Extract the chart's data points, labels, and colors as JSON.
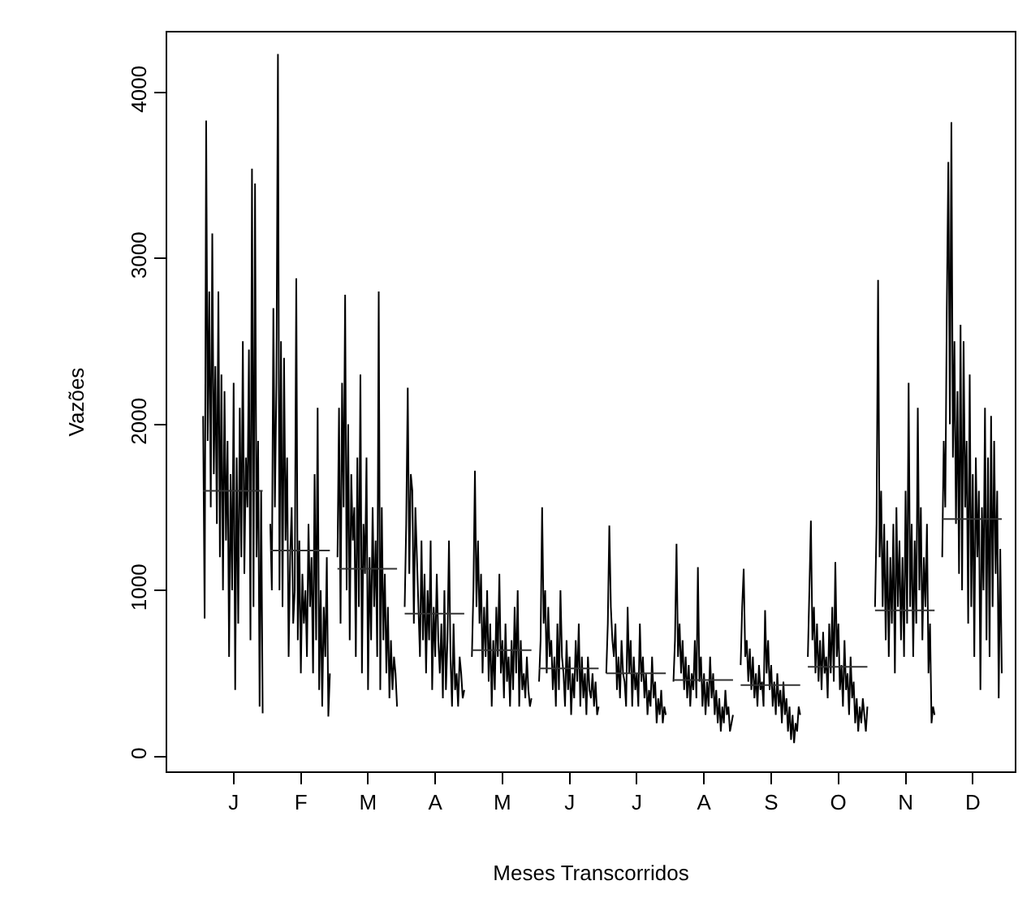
{
  "chart_data": {
    "type": "line",
    "xlabel": "Meses Transcorridos",
    "ylabel": "Vazões",
    "marker": "none",
    "line_style": "solid",
    "ylim": [
      -90,
      4360
    ],
    "yticks": [
      0,
      1000,
      2000,
      3000,
      4000
    ],
    "categories": [
      null,
      null,
      null,
      null,
      null,
      null,
      null,
      null,
      null,
      null,
      null,
      null,
      null,
      null,
      null,
      null,
      null,
      null,
      null,
      null,
      null,
      null,
      "J",
      null,
      null,
      null,
      null,
      null,
      null,
      null,
      null,
      null,
      null,
      null,
      null,
      null,
      null,
      null,
      null,
      null,
      null,
      null,
      null,
      null,
      null,
      null,
      null,
      null,
      null,
      null,
      null,
      null,
      null,
      null,
      null,
      null,
      null,
      null,
      null,
      null,
      null,
      null,
      null,
      null,
      null,
      null,
      "F",
      null,
      null,
      null,
      null,
      null,
      null,
      null,
      null,
      null,
      null,
      null,
      null,
      null,
      null,
      null,
      null,
      null,
      null,
      null,
      null,
      null,
      null,
      null,
      null,
      null,
      null,
      null,
      null,
      null,
      null,
      null,
      null,
      null,
      null,
      null,
      null,
      null,
      null,
      null,
      null,
      null,
      null,
      null,
      "M",
      null,
      null,
      null,
      null,
      null,
      null,
      null,
      null,
      null,
      null,
      null,
      null,
      null,
      null,
      null,
      null,
      null,
      null,
      null,
      null,
      null,
      null,
      null,
      null,
      null,
      null,
      null,
      null,
      null,
      null,
      null,
      null,
      null,
      null,
      null,
      null,
      null,
      null,
      null,
      null,
      null,
      null,
      null,
      "A",
      null,
      null,
      null,
      null,
      null,
      null,
      null,
      null,
      null,
      null,
      null,
      null,
      null,
      null,
      null,
      null,
      null,
      null,
      null,
      null,
      null,
      null,
      null,
      null,
      null,
      null,
      null,
      null,
      null,
      null,
      null,
      null,
      null,
      null,
      null,
      null,
      null,
      null,
      null,
      null,
      null,
      null,
      null,
      "M",
      null,
      null,
      null,
      null,
      null,
      null,
      null,
      null,
      null,
      null,
      null,
      null,
      null,
      null,
      null,
      null,
      null,
      null,
      null,
      null,
      null,
      null,
      null,
      null,
      null,
      null,
      null,
      null,
      null,
      null,
      null,
      null,
      null,
      null,
      null,
      null,
      null,
      null,
      null,
      null,
      null,
      null,
      null,
      "J",
      null,
      null,
      null,
      null,
      null,
      null,
      null,
      null,
      null,
      null,
      null,
      null,
      null,
      null,
      null,
      null,
      null,
      null,
      null,
      null,
      null,
      null,
      null,
      null,
      null,
      null,
      null,
      null,
      null,
      null,
      null,
      null,
      null,
      null,
      null,
      null,
      null,
      null,
      null,
      null,
      null,
      null,
      null,
      "J",
      null,
      null,
      null,
      null,
      null,
      null,
      null,
      null,
      null,
      null,
      null,
      null,
      null,
      null,
      null,
      null,
      null,
      null,
      null,
      null,
      null,
      null,
      null,
      null,
      null,
      null,
      null,
      null,
      null,
      null,
      null,
      null,
      null,
      null,
      null,
      null,
      null,
      null,
      null,
      null,
      null,
      null,
      null,
      "A",
      null,
      null,
      null,
      null,
      null,
      null,
      null,
      null,
      null,
      null,
      null,
      null,
      null,
      null,
      null,
      null,
      null,
      null,
      null,
      null,
      null,
      null,
      null,
      null,
      null,
      null,
      null,
      null,
      null,
      null,
      null,
      null,
      null,
      null,
      null,
      null,
      null,
      null,
      null,
      null,
      null,
      null,
      null,
      "S",
      null,
      null,
      null,
      null,
      null,
      null,
      null,
      null,
      null,
      null,
      null,
      null,
      null,
      null,
      null,
      null,
      null,
      null,
      null,
      null,
      null,
      null,
      null,
      null,
      null,
      null,
      null,
      null,
      null,
      null,
      null,
      null,
      null,
      null,
      null,
      null,
      null,
      null,
      null,
      null,
      null,
      null,
      null,
      "O",
      null,
      null,
      null,
      null,
      null,
      null,
      null,
      null,
      null,
      null,
      null,
      null,
      null,
      null,
      null,
      null,
      null,
      null,
      null,
      null,
      null,
      null,
      null,
      null,
      null,
      null,
      null,
      null,
      null,
      null,
      null,
      null,
      null,
      null,
      null,
      null,
      null,
      null,
      null,
      null,
      null,
      null,
      null,
      "N",
      null,
      null,
      null,
      null,
      null,
      null,
      null,
      null,
      null,
      null,
      null,
      null,
      null,
      null,
      null,
      null,
      null,
      null,
      null,
      null,
      null,
      null,
      null,
      null,
      null,
      null,
      null,
      null,
      null,
      null,
      null,
      null,
      null,
      null,
      null,
      null,
      null,
      null,
      null,
      null,
      null,
      null,
      null,
      "D",
      null,
      null,
      null,
      null,
      null,
      null,
      null,
      null,
      null,
      null,
      null,
      null,
      null,
      null,
      null,
      null,
      null,
      null,
      null,
      null,
      null
    ],
    "series": [
      {
        "color": "#000000",
        "values": [
          null,
          null,
          2050,
          830,
          3830,
          1900,
          2800,
          1500,
          3150,
          1700,
          2350,
          1400,
          2800,
          1200,
          2300,
          1000,
          2200,
          1300,
          1900,
          600,
          1700,
          1000,
          2250,
          400,
          1800,
          800,
          2100,
          1200,
          2500,
          1100,
          1800,
          1500,
          2450,
          700,
          3540,
          900,
          3450,
          1200,
          1900,
          300,
          1600,
          260,
          null,
          null,
          null,
          null,
          1400,
          1000,
          2700,
          1500,
          2250,
          4230,
          1000,
          2500,
          900,
          2400,
          1300,
          1800,
          600,
          1200,
          1500,
          800,
          1000,
          2880,
          700,
          1300,
          500,
          1100,
          800,
          1000,
          600,
          1400,
          900,
          1200,
          500,
          1700,
          700,
          2100,
          400,
          1000,
          300,
          900,
          600,
          1200,
          240,
          500,
          null,
          null,
          null,
          null,
          1200,
          2100,
          800,
          2250,
          1500,
          2780,
          1000,
          2000,
          700,
          1700,
          1300,
          1500,
          600,
          1800,
          900,
          2300,
          500,
          1400,
          1100,
          1800,
          400,
          1200,
          700,
          1500,
          900,
          1300,
          600,
          2800,
          400,
          1500,
          700,
          1100,
          500,
          900,
          350,
          700,
          400,
          600,
          500,
          300,
          null,
          null,
          null,
          null,
          900,
          1400,
          2220,
          1100,
          1700,
          1600,
          800,
          1500,
          1200,
          900,
          600,
          1300,
          700,
          1100,
          500,
          1000,
          700,
          1300,
          400,
          900,
          600,
          1100,
          700,
          500,
          800,
          350,
          1000,
          400,
          700,
          1300,
          600,
          300,
          800,
          400,
          500,
          300,
          600,
          500,
          350,
          400,
          null,
          null,
          null,
          null,
          600,
          1000,
          1720,
          900,
          1300,
          800,
          1100,
          500,
          900,
          600,
          1000,
          450,
          800,
          300,
          700,
          400,
          900,
          600,
          1100,
          500,
          700,
          350,
          800,
          450,
          600,
          300,
          700,
          400,
          900,
          500,
          1000,
          300,
          700,
          400,
          500,
          350,
          600,
          400,
          300,
          350,
          null,
          null,
          null,
          null,
          450,
          700,
          1500,
          800,
          1000,
          500,
          900,
          600,
          700,
          400,
          600,
          300,
          800,
          400,
          1000,
          600,
          500,
          300,
          700,
          400,
          600,
          250,
          500,
          350,
          700,
          450,
          800,
          300,
          600,
          350,
          500,
          250,
          600,
          400,
          350,
          500,
          300,
          450,
          250,
          300,
          null,
          null,
          null,
          null,
          500,
          800,
          1390,
          900,
          700,
          600,
          800,
          400,
          600,
          350,
          700,
          500,
          450,
          300,
          900,
          500,
          700,
          300,
          600,
          400,
          500,
          300,
          800,
          450,
          600,
          350,
          500,
          250,
          400,
          300,
          600,
          350,
          450,
          200,
          350,
          250,
          400,
          200,
          300,
          250,
          null,
          null,
          null,
          null,
          450,
          700,
          1280,
          600,
          800,
          500,
          700,
          400,
          600,
          350,
          550,
          300,
          500,
          400,
          700,
          350,
          1140,
          450,
          600,
          300,
          500,
          250,
          450,
          300,
          600,
          350,
          500,
          250,
          400,
          200,
          350,
          150,
          300,
          200,
          400,
          250,
          300,
          150,
          200,
          250,
          null,
          null,
          null,
          null,
          550,
          900,
          1130,
          600,
          700,
          450,
          650,
          400,
          600,
          350,
          500,
          300,
          550,
          400,
          450,
          300,
          880,
          500,
          700,
          400,
          550,
          300,
          450,
          250,
          500,
          300,
          400,
          200,
          450,
          250,
          350,
          150,
          300,
          100,
          250,
          80,
          200,
          150,
          300,
          250,
          null,
          null,
          null,
          null,
          600,
          1000,
          1420,
          700,
          900,
          500,
          800,
          450,
          700,
          400,
          750,
          500,
          600,
          350,
          800,
          500,
          900,
          450,
          1170,
          600,
          800,
          400,
          550,
          300,
          700,
          400,
          500,
          250,
          600,
          350,
          450,
          200,
          350,
          150,
          300,
          200,
          350,
          250,
          150,
          300,
          null,
          null,
          null,
          null,
          900,
          1400,
          2870,
          1200,
          1600,
          900,
          1400,
          700,
          1300,
          600,
          1200,
          800,
          1400,
          500,
          1500,
          900,
          1300,
          700,
          1200,
          600,
          1600,
          800,
          2250,
          900,
          1400,
          600,
          1300,
          800,
          2100,
          1000,
          1500,
          700,
          1200,
          900,
          1400,
          500,
          800,
          200,
          300,
          250,
          null,
          null,
          null,
          null,
          1200,
          1900,
          1500,
          2700,
          3580,
          2000,
          3820,
          1800,
          2500,
          1400,
          2200,
          1100,
          2600,
          1000,
          2500,
          1500,
          1900,
          800,
          2300,
          900,
          1700,
          600,
          1800,
          1200,
          1600,
          400,
          1500,
          1000,
          2100,
          700,
          1800,
          600,
          2050,
          900,
          1900,
          1100,
          1600,
          350,
          1250,
          500,
          null,
          null
        ]
      },
      {
        "color": "#333333",
        "values": [
          null,
          null,
          1600,
          1600,
          1600,
          1600,
          1600,
          1600,
          1600,
          1600,
          1600,
          1600,
          1600,
          1600,
          1600,
          1600,
          1600,
          1600,
          1600,
          1600,
          1600,
          1600,
          1600,
          1600,
          1600,
          1600,
          1600,
          1600,
          1600,
          1600,
          1600,
          1600,
          1600,
          1600,
          1600,
          1600,
          1600,
          1600,
          1600,
          1600,
          1600,
          1600,
          null,
          null,
          null,
          null,
          1240,
          1240,
          1240,
          1240,
          1240,
          1240,
          1240,
          1240,
          1240,
          1240,
          1240,
          1240,
          1240,
          1240,
          1240,
          1240,
          1240,
          1240,
          1240,
          1240,
          1240,
          1240,
          1240,
          1240,
          1240,
          1240,
          1240,
          1240,
          1240,
          1240,
          1240,
          1240,
          1240,
          1240,
          1240,
          1240,
          1240,
          1240,
          1240,
          1240,
          null,
          null,
          null,
          null,
          1130,
          1130,
          1130,
          1130,
          1130,
          1130,
          1130,
          1130,
          1130,
          1130,
          1130,
          1130,
          1130,
          1130,
          1130,
          1130,
          1130,
          1130,
          1130,
          1130,
          1130,
          1130,
          1130,
          1130,
          1130,
          1130,
          1130,
          1130,
          1130,
          1130,
          1130,
          1130,
          1130,
          1130,
          1130,
          1130,
          1130,
          1130,
          1130,
          1130,
          null,
          null,
          null,
          null,
          860,
          860,
          860,
          860,
          860,
          860,
          860,
          860,
          860,
          860,
          860,
          860,
          860,
          860,
          860,
          860,
          860,
          860,
          860,
          860,
          860,
          860,
          860,
          860,
          860,
          860,
          860,
          860,
          860,
          860,
          860,
          860,
          860,
          860,
          860,
          860,
          860,
          860,
          860,
          860,
          null,
          null,
          null,
          null,
          640,
          640,
          640,
          640,
          640,
          640,
          640,
          640,
          640,
          640,
          640,
          640,
          640,
          640,
          640,
          640,
          640,
          640,
          640,
          640,
          640,
          640,
          640,
          640,
          640,
          640,
          640,
          640,
          640,
          640,
          640,
          640,
          640,
          640,
          640,
          640,
          640,
          640,
          640,
          640,
          null,
          null,
          null,
          null,
          530,
          530,
          530,
          530,
          530,
          530,
          530,
          530,
          530,
          530,
          530,
          530,
          530,
          530,
          530,
          530,
          530,
          530,
          530,
          530,
          530,
          530,
          530,
          530,
          530,
          530,
          530,
          530,
          530,
          530,
          530,
          530,
          530,
          530,
          530,
          530,
          530,
          530,
          530,
          530,
          null,
          null,
          null,
          null,
          500,
          500,
          500,
          500,
          500,
          500,
          500,
          500,
          500,
          500,
          500,
          500,
          500,
          500,
          500,
          500,
          500,
          500,
          500,
          500,
          500,
          500,
          500,
          500,
          500,
          500,
          500,
          500,
          500,
          500,
          500,
          500,
          500,
          500,
          500,
          500,
          500,
          500,
          500,
          500,
          null,
          null,
          null,
          null,
          460,
          460,
          460,
          460,
          460,
          460,
          460,
          460,
          460,
          460,
          460,
          460,
          460,
          460,
          460,
          460,
          460,
          460,
          460,
          460,
          460,
          460,
          460,
          460,
          460,
          460,
          460,
          460,
          460,
          460,
          460,
          460,
          460,
          460,
          460,
          460,
          460,
          460,
          460,
          460,
          null,
          null,
          null,
          null,
          430,
          430,
          430,
          430,
          430,
          430,
          430,
          430,
          430,
          430,
          430,
          430,
          430,
          430,
          430,
          430,
          430,
          430,
          430,
          430,
          430,
          430,
          430,
          430,
          430,
          430,
          430,
          430,
          430,
          430,
          430,
          430,
          430,
          430,
          430,
          430,
          430,
          430,
          430,
          430,
          null,
          null,
          null,
          null,
          540,
          540,
          540,
          540,
          540,
          540,
          540,
          540,
          540,
          540,
          540,
          540,
          540,
          540,
          540,
          540,
          540,
          540,
          540,
          540,
          540,
          540,
          540,
          540,
          540,
          540,
          540,
          540,
          540,
          540,
          540,
          540,
          540,
          540,
          540,
          540,
          540,
          540,
          540,
          540,
          null,
          null,
          null,
          null,
          880,
          880,
          880,
          880,
          880,
          880,
          880,
          880,
          880,
          880,
          880,
          880,
          880,
          880,
          880,
          880,
          880,
          880,
          880,
          880,
          880,
          880,
          880,
          880,
          880,
          880,
          880,
          880,
          880,
          880,
          880,
          880,
          880,
          880,
          880,
          880,
          880,
          880,
          880,
          880,
          null,
          null,
          null,
          null,
          1430,
          1430,
          1430,
          1430,
          1430,
          1430,
          1430,
          1430,
          1430,
          1430,
          1430,
          1430,
          1430,
          1430,
          1430,
          1430,
          1430,
          1430,
          1430,
          1430,
          1430,
          1430,
          1430,
          1430,
          1430,
          1430,
          1430,
          1430,
          1430,
          1430,
          1430,
          1430,
          1430,
          1430,
          1430,
          1430,
          1430,
          1430,
          1430,
          1430,
          null,
          null
        ]
      }
    ]
  }
}
